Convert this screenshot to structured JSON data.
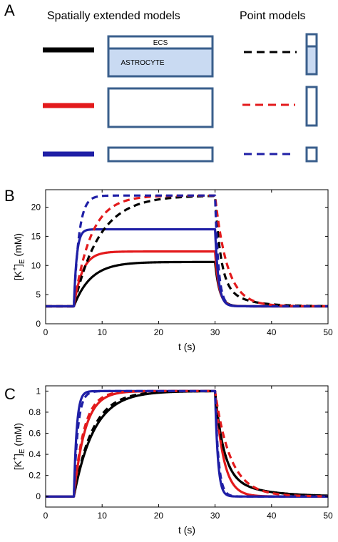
{
  "panel_a": {
    "label": "A",
    "heading_left": "Spatially extended models",
    "heading_right": "Point models",
    "ecs_label": "ECS",
    "astro_label": "ASTROCYTE",
    "colors": {
      "black": "#000000",
      "red": "#e31a1c",
      "blue": "#1f1fa6",
      "box_stroke": "#3a5f8c",
      "box_fill": "#c9daf2"
    }
  },
  "chart_data": [
    {
      "panel": "B",
      "type": "line",
      "xlabel": "t (s)",
      "ylabel": {
        "base": "[K",
        "sup": "+",
        "close": "]",
        "sub": "E",
        "unit": "(mM)"
      },
      "xlim": [
        0,
        50
      ],
      "ylim": [
        0,
        23
      ],
      "xticks": [
        0,
        10,
        20,
        30,
        40,
        50
      ],
      "yticks": [
        0,
        5,
        10,
        15,
        20
      ],
      "grid": false,
      "series": [
        {
          "color": "#000000",
          "style": "solid",
          "baseline": 3,
          "peak": 10.6,
          "tau_rise": 3.0,
          "tau_fall": 0.8,
          "fall_tail": 0
        },
        {
          "color": "#e31a1c",
          "style": "solid",
          "baseline": 3,
          "peak": 12.4,
          "tau_rise": 1.5,
          "tau_fall": 0.7,
          "fall_tail": 0
        },
        {
          "color": "#1f1fa6",
          "style": "solid",
          "baseline": 3,
          "peak": 16.2,
          "tau_rise": 0.5,
          "tau_fall": 0.6,
          "fall_tail": 0
        },
        {
          "color": "#000000",
          "style": "dashed",
          "baseline": 3,
          "peak": 22.0,
          "tau_rise": 4.5,
          "tau_fall": 1.0,
          "fall_tail": 4.0
        },
        {
          "color": "#e31a1c",
          "style": "dashed",
          "baseline": 3,
          "peak": 22.0,
          "tau_rise": 3.0,
          "tau_fall": 2.0,
          "fall_tail": 3.0
        },
        {
          "color": "#1f1fa6",
          "style": "dashed",
          "baseline": 3,
          "peak": 22.0,
          "tau_rise": 0.9,
          "tau_fall": 0.6,
          "fall_tail": 0
        }
      ],
      "stimulus": {
        "on": 5,
        "off": 30
      }
    },
    {
      "panel": "C",
      "type": "line",
      "xlabel": "t (s)",
      "ylabel": {
        "base": "[K",
        "sup": "+",
        "close": "]",
        "sub": "E",
        "unit": "(mM)"
      },
      "xlim": [
        0,
        50
      ],
      "ylim": [
        -0.1,
        1.05
      ],
      "xticks": [
        0,
        10,
        20,
        30,
        40,
        50
      ],
      "yticks": [
        0,
        0.2,
        0.4,
        0.6,
        0.8,
        1
      ],
      "grid": false,
      "series": [
        {
          "color": "#000000",
          "style": "solid",
          "baseline": 0,
          "peak": 1,
          "tau_rise": 3.6,
          "tau_fall": 1.5,
          "fall_tail": 6.0
        },
        {
          "color": "#e31a1c",
          "style": "solid",
          "baseline": 0,
          "peak": 1,
          "tau_rise": 2.0,
          "tau_fall": 1.5,
          "fall_tail": 0
        },
        {
          "color": "#1f1fa6",
          "style": "solid",
          "baseline": 0,
          "peak": 1,
          "tau_rise": 0.5,
          "tau_fall": 0.5,
          "fall_tail": 0
        },
        {
          "color": "#000000",
          "style": "dashed",
          "baseline": 0,
          "peak": 1,
          "tau_rise": 3.3,
          "tau_fall": 1.5,
          "fall_tail": 6.0
        },
        {
          "color": "#e31a1c",
          "style": "dashed",
          "baseline": 0,
          "peak": 1,
          "tau_rise": 1.8,
          "tau_fall": 2.5,
          "fall_tail": 4.0
        },
        {
          "color": "#1f1fa6",
          "style": "dashed",
          "baseline": 0,
          "peak": 1,
          "tau_rise": 0.7,
          "tau_fall": 0.6,
          "fall_tail": 0
        }
      ],
      "stimulus": {
        "on": 5,
        "off": 30
      }
    }
  ],
  "panel_labels": {
    "b": "B",
    "c": "C"
  }
}
